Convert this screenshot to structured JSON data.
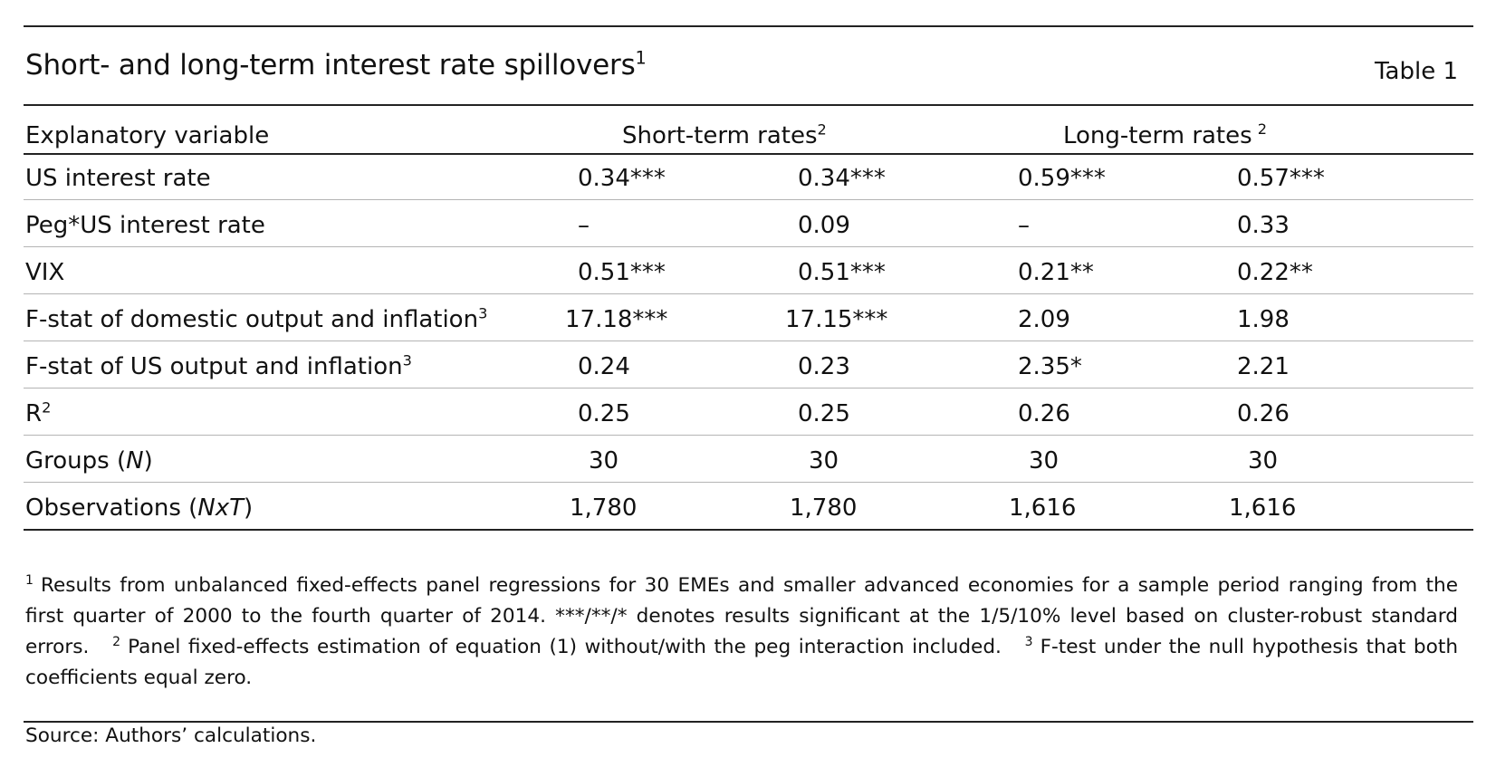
{
  "title": {
    "text": "Short- and long-term interest rate spillovers",
    "sup": "1"
  },
  "table_number": "Table 1",
  "headers": {
    "explanatory": "Explanatory variable",
    "short_term": {
      "text": "Short-term rates",
      "sup": "2"
    },
    "long_term": {
      "text": "Long-term rates",
      "sup": "2"
    }
  },
  "rows": [
    {
      "label": "US interest rate",
      "label_sup": "",
      "values": [
        "0.34***",
        "0.34***",
        "0.59***",
        "0.57***"
      ]
    },
    {
      "label": "Peg*US interest rate",
      "label_sup": "",
      "values": [
        "–",
        "0.09",
        "–",
        "0.33"
      ]
    },
    {
      "label": "VIX",
      "label_sup": "",
      "values": [
        "0.51***",
        "0.51***",
        "0.21**",
        "0.22**"
      ]
    },
    {
      "label": "F-stat of domestic output and inflation",
      "label_sup": "3",
      "values": [
        "17.18***",
        "17.15***",
        "2.09",
        "1.98"
      ]
    },
    {
      "label": "F-stat of US output and inflation",
      "label_sup": "3",
      "values": [
        "0.24",
        "0.23",
        "2.35*",
        "2.21"
      ]
    },
    {
      "label": "R",
      "label_sup": "2",
      "values": [
        "0.25",
        "0.25",
        "0.26",
        "0.26"
      ]
    },
    {
      "label": "Groups (",
      "label_italic": "N",
      "label_after": ")",
      "values": [
        "30",
        "30",
        "30",
        "30"
      ]
    },
    {
      "label": "Observations (",
      "label_italic": "NxT",
      "label_after": ")",
      "values": [
        "1,780",
        "1,780",
        "1,616",
        "1,616"
      ]
    }
  ],
  "notes": {
    "n1_mark": "1",
    "n1": "Results from unbalanced fixed-effects panel regressions for 30 EMEs and smaller advanced economies for a sample period ranging from the first quarter of 2000 to the fourth quarter of 2014. ***/**/* denotes results significant at the 1/5/10% level based on cluster-robust standard errors.",
    "n2_mark": "2",
    "n2": "Panel fixed-effects estimation of equation (1) without/with the peg interaction included.",
    "n3_mark": "3",
    "n3": "F-test under the null hypothesis that both coefficients equal zero."
  },
  "source": "Source: Authors’ calculations."
}
